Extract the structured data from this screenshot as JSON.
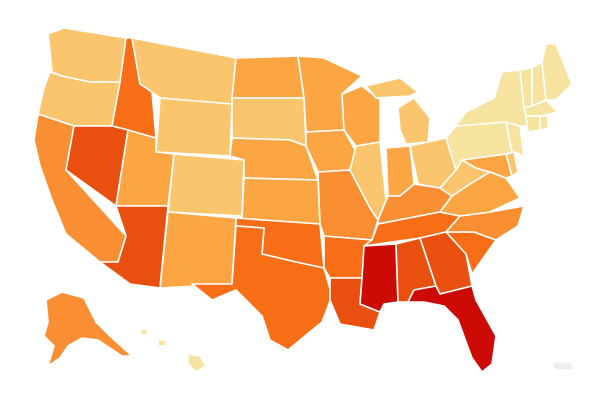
{
  "map": {
    "palette": {
      "c1": "#f6e3a0",
      "c2": "#fbc56e",
      "c3": "#fba543",
      "c4": "#f98f32",
      "c5": "#f86e16",
      "c6": "#e9500f",
      "c7": "#d8300e",
      "c8": "#cc0a06",
      "territory": "#eeeeee"
    },
    "states": [
      {
        "id": "WA",
        "level": "c2"
      },
      {
        "id": "OR",
        "level": "c2"
      },
      {
        "id": "CA",
        "level": "c4"
      },
      {
        "id": "ID",
        "level": "c5"
      },
      {
        "id": "NV",
        "level": "c6"
      },
      {
        "id": "MT",
        "level": "c2"
      },
      {
        "id": "WY",
        "level": "c2"
      },
      {
        "id": "UT",
        "level": "c3"
      },
      {
        "id": "AZ",
        "level": "c6"
      },
      {
        "id": "CO",
        "level": "c2"
      },
      {
        "id": "NM",
        "level": "c3"
      },
      {
        "id": "ND",
        "level": "c3"
      },
      {
        "id": "SD",
        "level": "c2"
      },
      {
        "id": "NE",
        "level": "c3"
      },
      {
        "id": "KS",
        "level": "c3"
      },
      {
        "id": "OK",
        "level": "c5"
      },
      {
        "id": "TX",
        "level": "c5"
      },
      {
        "id": "MN",
        "level": "c3"
      },
      {
        "id": "IA",
        "level": "c3"
      },
      {
        "id": "MO",
        "level": "c4"
      },
      {
        "id": "AR",
        "level": "c5"
      },
      {
        "id": "LA",
        "level": "c6"
      },
      {
        "id": "WI",
        "level": "c3"
      },
      {
        "id": "IL",
        "level": "c2"
      },
      {
        "id": "MI",
        "level": "c2"
      },
      {
        "id": "IN",
        "level": "c3"
      },
      {
        "id": "OH",
        "level": "c2"
      },
      {
        "id": "KY",
        "level": "c4"
      },
      {
        "id": "TN",
        "level": "c5"
      },
      {
        "id": "MS",
        "level": "c8"
      },
      {
        "id": "AL",
        "level": "c6"
      },
      {
        "id": "GA",
        "level": "c6"
      },
      {
        "id": "FL",
        "level": "c8"
      },
      {
        "id": "SC",
        "level": "c5"
      },
      {
        "id": "NC",
        "level": "c4"
      },
      {
        "id": "VA",
        "level": "c3"
      },
      {
        "id": "WV",
        "level": "c2"
      },
      {
        "id": "PA",
        "level": "c1"
      },
      {
        "id": "NY",
        "level": "c1"
      },
      {
        "id": "VT",
        "level": "c1"
      },
      {
        "id": "NH",
        "level": "c1"
      },
      {
        "id": "ME",
        "level": "c1"
      },
      {
        "id": "MA",
        "level": "c1"
      },
      {
        "id": "CT",
        "level": "c1"
      },
      {
        "id": "RI",
        "level": "c1"
      },
      {
        "id": "NJ",
        "level": "c1"
      },
      {
        "id": "DE",
        "level": "c2"
      },
      {
        "id": "MD",
        "level": "c3"
      },
      {
        "id": "AK",
        "level": "c4"
      },
      {
        "id": "HI",
        "level": "c1"
      },
      {
        "id": "PR",
        "level": "territory"
      }
    ]
  }
}
